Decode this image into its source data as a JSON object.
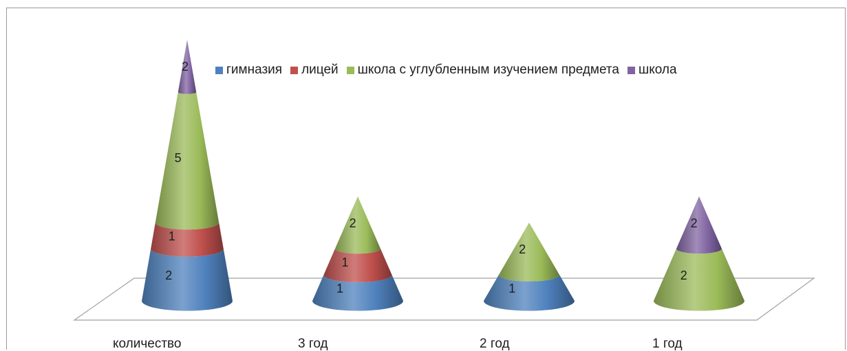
{
  "chart_data": {
    "type": "bar",
    "subtype": "stacked-3d-cone",
    "categories": [
      "количество",
      "3 год",
      "2 год",
      "1 год"
    ],
    "series": [
      {
        "name": "гимназия",
        "color": "#4f81bd",
        "values": [
          2,
          1,
          1,
          0
        ]
      },
      {
        "name": "лицей",
        "color": "#c0504d",
        "values": [
          1,
          1,
          0,
          0
        ]
      },
      {
        "name": "школа с углубленным изучением предмета",
        "color": "#9bbb59",
        "values": [
          5,
          2,
          2,
          2
        ]
      },
      {
        "name": "школа",
        "color": "#8064a2",
        "values": [
          2,
          0,
          0,
          2
        ]
      }
    ],
    "title": "",
    "xlabel": "",
    "ylabel": "",
    "legend_position": "top-right",
    "grid": false
  }
}
